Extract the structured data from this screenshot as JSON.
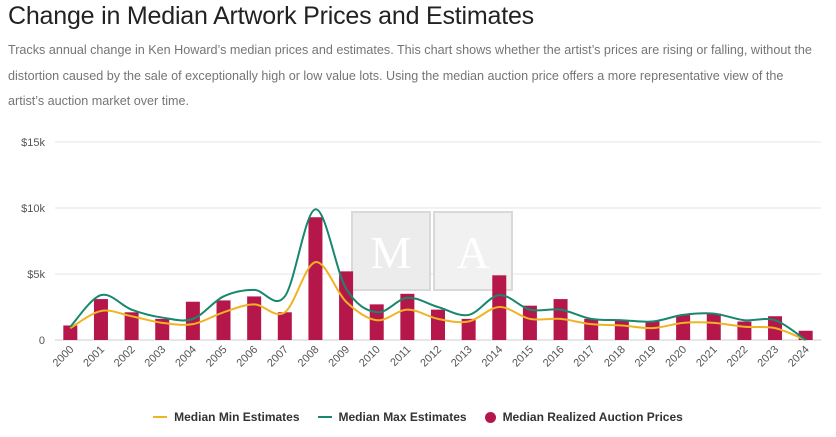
{
  "title": "Change in Median Artwork Prices and Estimates",
  "description": "Tracks annual change in Ken Howard’s median prices and estimates. This chart shows whether the artist’s prices are rising or falling, without the distortion caused by the sale of exceptionally high or low value lots. Using the median auction price offers a more representative view of the artist’s auction market over time.",
  "watermark": "MA",
  "colors": {
    "bar": "#b5174b",
    "min": "#f0b323",
    "max": "#17876d",
    "grid": "#e6e6e6"
  },
  "chart_data": {
    "type": "bar",
    "categories": [
      "2000",
      "2001",
      "2002",
      "2003",
      "2004",
      "2005",
      "2006",
      "2007",
      "2008",
      "2009",
      "2010",
      "2011",
      "2012",
      "2013",
      "2014",
      "2015",
      "2016",
      "2017",
      "2018",
      "2019",
      "2020",
      "2021",
      "2022",
      "2023",
      "2024"
    ],
    "series": [
      {
        "name": "Median Realized Auction Prices",
        "kind": "bar",
        "values": [
          1100,
          3100,
          2100,
          1600,
          2900,
          3000,
          3300,
          2100,
          9300,
          5200,
          2700,
          3500,
          2300,
          1600,
          4900,
          2600,
          3100,
          1600,
          1500,
          1400,
          1900,
          2000,
          1400,
          1800,
          700
        ]
      },
      {
        "name": "Median Min Estimates",
        "kind": "line",
        "values": [
          900,
          2200,
          1800,
          1300,
          1200,
          2100,
          2700,
          2100,
          5900,
          2900,
          1500,
          2300,
          1600,
          1400,
          2500,
          1600,
          1600,
          1200,
          1100,
          900,
          1300,
          1300,
          1000,
          900,
          0
        ]
      },
      {
        "name": "Median Max Estimates",
        "kind": "line",
        "values": [
          1000,
          3400,
          2300,
          1700,
          1600,
          3300,
          3800,
          3300,
          9900,
          3900,
          2100,
          3200,
          2500,
          1900,
          3400,
          2300,
          2300,
          1600,
          1500,
          1400,
          1900,
          2000,
          1500,
          1500,
          0
        ]
      }
    ],
    "yticks": [
      "$15k",
      "$10k",
      "$5k",
      "0"
    ],
    "ytick_values": [
      15000,
      10000,
      5000,
      0
    ],
    "ylim": [
      0,
      15000
    ],
    "xlabel": "",
    "ylabel": "",
    "legend": [
      "Median Min Estimates",
      "Median Max Estimates",
      "Median Realized Auction Prices"
    ]
  }
}
